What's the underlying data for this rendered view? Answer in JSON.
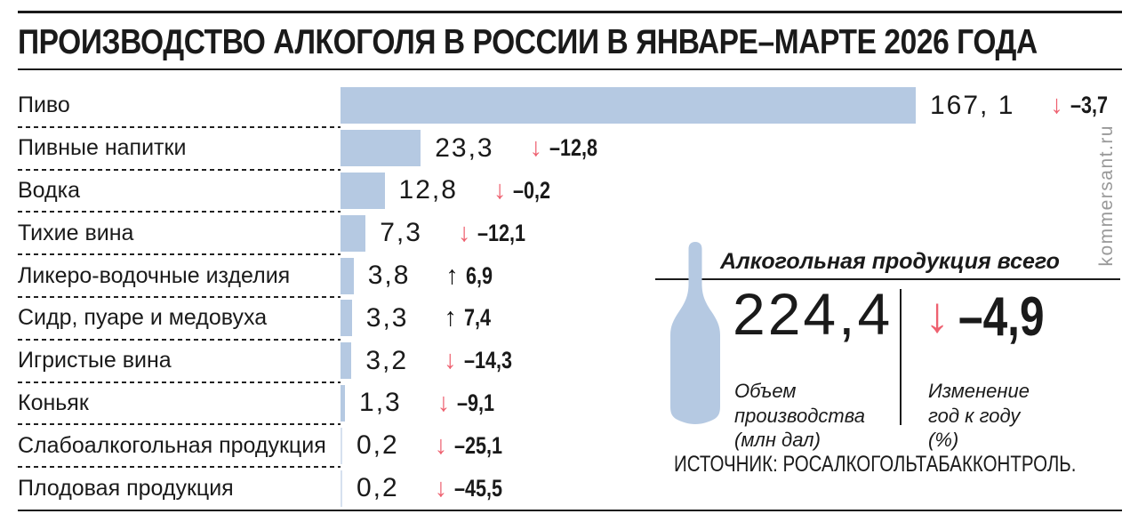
{
  "title": "ПРОИЗВОДСТВО АЛКОГОЛЯ В РОССИИ В ЯНВАРЕ–МАРТЕ 2026 ГОДА",
  "chart_data": {
    "type": "bar",
    "orientation": "horizontal",
    "title": "ПРОИЗВОДСТВО АЛКОГОЛЯ В РОССИИ В ЯНВАРЕ–МАРТЕ 2026 ГОДА",
    "units": "млн дал",
    "xlim": [
      0,
      175
    ],
    "grid": false,
    "legend": "none",
    "categories": [
      "Пиво",
      "Пивные напитки",
      "Водка",
      "Тихие вина",
      "Ликеро-водочные изделия",
      "Сидр, пуаре и медовуха",
      "Игристые вина",
      "Коньяк",
      "Слабоалкогольная продукция",
      "Плодовая продукция"
    ],
    "values": [
      167.1,
      23.3,
      12.8,
      7.3,
      3.8,
      3.3,
      3.2,
      1.3,
      0.2,
      0.2
    ],
    "value_labels": [
      "167, 1",
      "23,3",
      "12,8",
      "7,3",
      "3,8",
      "3,3",
      "3,2",
      "1,3",
      "0,2",
      "0,2"
    ],
    "change_yoy_pct": [
      -3.7,
      -12.8,
      -0.2,
      -12.1,
      6.9,
      7.4,
      -14.3,
      -9.1,
      -25.1,
      -45.5
    ],
    "change_labels": [
      "–3,7",
      "–12,8",
      "–0,2",
      "–12,1",
      "6,9",
      "7,4",
      "–14,3",
      "–9,1",
      "–25,1",
      "–45,5"
    ],
    "directions": [
      "down",
      "down",
      "down",
      "down",
      "up",
      "up",
      "down",
      "down",
      "down",
      "down"
    ],
    "down_glyph": "↓",
    "up_glyph": "↑",
    "bar_color": "#b5c9e2",
    "down_arrow_color": "#ee6170",
    "up_arrow_color": "#111111",
    "total": {
      "volume": 224.4,
      "change_yoy_pct": -4.9
    }
  },
  "summary": {
    "heading": "Алкогольная продукция всего",
    "volume_value": "224,4",
    "volume_label_lines": [
      "Объем",
      "производства",
      "(млн дал)"
    ],
    "change_glyph": "↓",
    "change_value": "–4,9",
    "change_label_lines": [
      "Изменение",
      "год к году",
      "(%)"
    ],
    "bottle_color": "#b5c9e2"
  },
  "source": "ИСТОЧНИК: РОСАЛКОГОЛЬТАБАККОНТРОЛЬ.",
  "watermark": "kommersant.ru"
}
